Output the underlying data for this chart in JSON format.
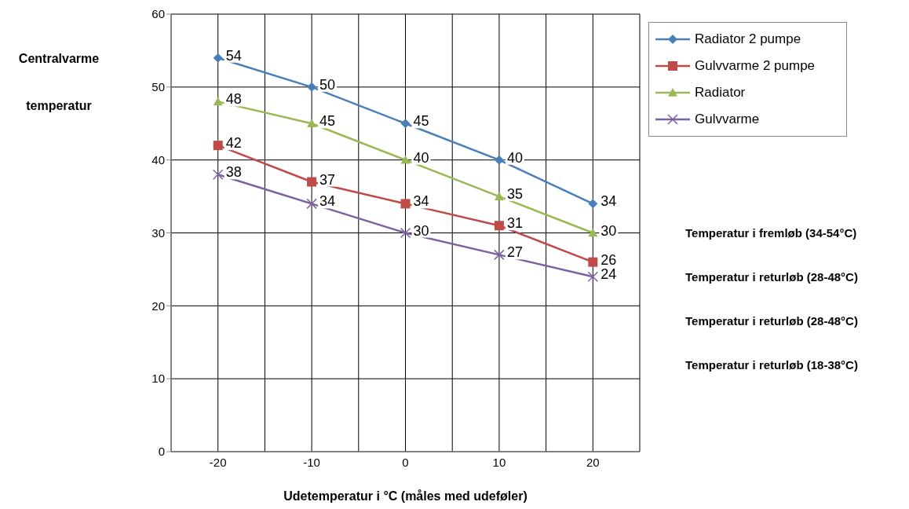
{
  "chart_data": {
    "type": "line",
    "ylabel": "Centralvarme temperatur",
    "xlabel": "Udetemperatur i °C (måles med udeføler)",
    "x": [
      -20,
      -10,
      0,
      10,
      20
    ],
    "series": [
      {
        "name": "Radiator 2 pumpe",
        "color": "#4a7ebb",
        "marker": "diamond",
        "values": [
          54,
          50,
          45,
          40,
          34
        ]
      },
      {
        "name": "Gulvvarme 2 pumpe",
        "color": "#be4b48",
        "marker": "square",
        "values": [
          42,
          37,
          34,
          31,
          26
        ]
      },
      {
        "name": "Radiator",
        "color": "#98b954",
        "marker": "triangle",
        "values": [
          48,
          45,
          40,
          35,
          30
        ]
      },
      {
        "name": "Gulvvarme",
        "color": "#7d60a0",
        "marker": "cross",
        "values": [
          38,
          34,
          30,
          27,
          24
        ]
      }
    ],
    "xlim": [
      -25,
      25
    ],
    "xticks": [
      {
        "value": -25,
        "label": null
      },
      -20,
      {
        "value": -15,
        "label": null
      },
      -10,
      {
        "value": -5,
        "label": null
      },
      0,
      {
        "value": 5,
        "label": null
      },
      10,
      {
        "value": 15,
        "label": null
      },
      20,
      {
        "value": 25,
        "label": null
      }
    ],
    "ylim": [
      0,
      60
    ],
    "yticks": [
      0,
      10,
      20,
      30,
      40,
      50,
      60
    ],
    "grid": true,
    "legend": "top right",
    "line_style": "solid",
    "data_labels": true,
    "annotations": [
      "Temperatur i fremløb (34-54°C)",
      "Temperatur i returløb (28-48°C)",
      "Temperatur i returløb (28-48°C)",
      "Temperatur i returløb (18-38°C)"
    ]
  }
}
